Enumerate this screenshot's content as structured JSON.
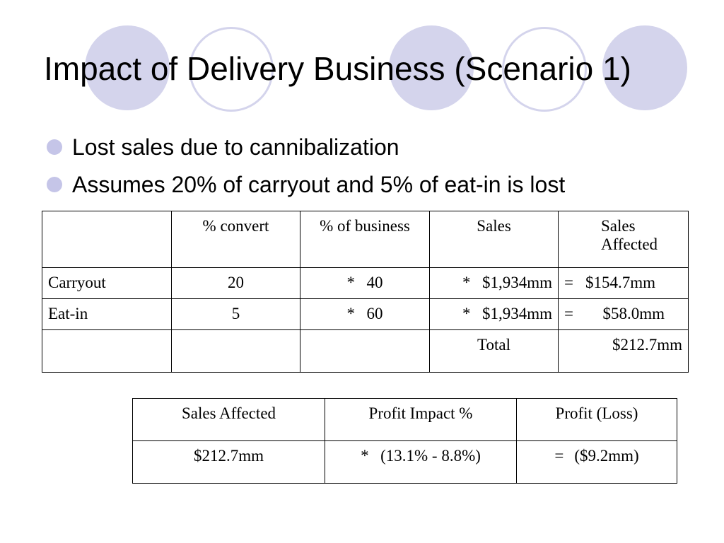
{
  "slide": {
    "title": "Impact of Delivery Business (Scenario 1)",
    "bullets": [
      "Lost sales due to cannibalization",
      "Assumes 20% of carryout and 5% of eat-in is lost"
    ],
    "colors": {
      "accent": "#d4d4ec",
      "bullet": "#c5c5e8"
    }
  },
  "table1": {
    "headers": [
      "",
      "% convert",
      "% of business",
      "Sales",
      "Sales Affected"
    ],
    "rows": [
      {
        "label": "Carryout",
        "convert": "20",
        "business_op": "*",
        "business": "40",
        "sales_op": "*",
        "sales": "$1,934mm",
        "affected_op": "=",
        "affected": "$154.7mm"
      },
      {
        "label": "Eat-in",
        "convert": "5",
        "business_op": "*",
        "business": "60",
        "sales_op": "*",
        "sales": "$1,934mm",
        "affected_op": "=",
        "affected": "$58.0mm"
      }
    ],
    "total_label": "Total",
    "total_value": "$212.7mm"
  },
  "table2": {
    "headers": [
      "Sales Affected",
      "Profit Impact %",
      "Profit (Loss)"
    ],
    "row": {
      "sales_affected": "$212.7mm",
      "impact_op": "*",
      "impact": "(13.1% - 8.8%)",
      "loss_op": "=",
      "loss": "($9.2mm)"
    }
  }
}
